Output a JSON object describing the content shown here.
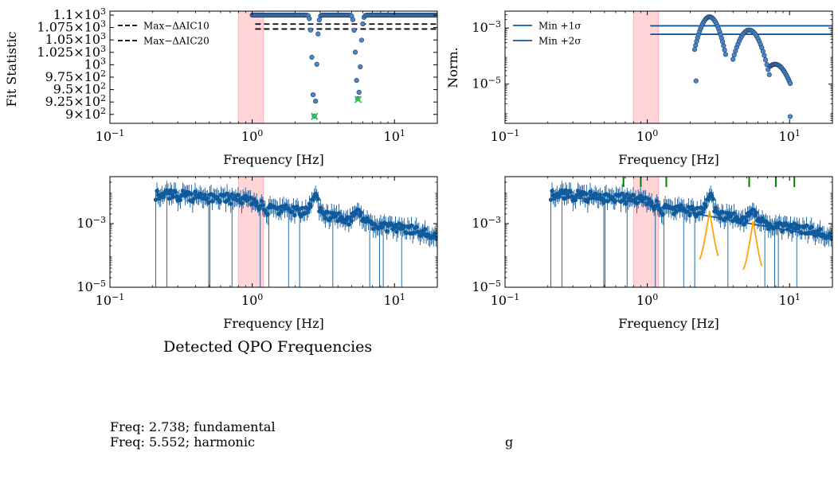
{
  "chart_data": [
    {
      "type": "scatter",
      "panel": "top-left",
      "xlabel": "Frequency [Hz]",
      "ylabel": "Fit Statistic",
      "xscale": "log",
      "xlim": [
        0.1,
        20
      ],
      "ylim": [
        882,
        1108
      ],
      "x_ticks": [
        {
          "value": 0.1,
          "base": "10",
          "exp": "−1"
        },
        {
          "value": 1,
          "base": "10",
          "exp": "0"
        },
        {
          "value": 10,
          "base": "10",
          "exp": "1"
        }
      ],
      "y_ticks": [
        {
          "value": 900,
          "mant": "9",
          "times": "×",
          "base": "10",
          "exp": "2"
        },
        {
          "value": 925,
          "mant": "9.25",
          "times": "×",
          "base": "10",
          "exp": "2"
        },
        {
          "value": 950,
          "mant": "9.5",
          "times": "×",
          "base": "10",
          "exp": "2"
        },
        {
          "value": 975,
          "mant": "9.75",
          "times": "×",
          "base": "10",
          "exp": "2"
        },
        {
          "value": 1000,
          "mant": "",
          "times": "",
          "base": "10",
          "exp": "3"
        },
        {
          "value": 1025,
          "mant": "1.025",
          "times": "×",
          "base": "10",
          "exp": "3"
        },
        {
          "value": 1050,
          "mant": "1.05",
          "times": "×",
          "base": "10",
          "exp": "3"
        },
        {
          "value": 1075,
          "mant": "1.075",
          "times": "×",
          "base": "10",
          "exp": "3"
        },
        {
          "value": 1100,
          "mant": "1.1",
          "times": "×",
          "base": "10",
          "exp": "3"
        }
      ],
      "shaded_band": {
        "x0": 0.8,
        "x1": 1.2,
        "color": "#ffb3b8"
      },
      "lines": [
        {
          "name": "Max−ΔAIC10",
          "y": 1082,
          "x0": 1.05,
          "x1": 20,
          "style": "dashed",
          "color": "#000000"
        },
        {
          "name": "Max−ΔAIC20",
          "y": 1072,
          "x0": 1.05,
          "x1": 20,
          "style": "dashed",
          "color": "#000000"
        }
      ],
      "legend": "upper left",
      "series_color": "#4a86c8",
      "marked_minima": [
        {
          "x": 2.738,
          "y": 896
        },
        {
          "x": 5.552,
          "y": 930
        }
      ],
      "marker_color": "#2ecc40"
    },
    {
      "type": "scatter",
      "panel": "top-right",
      "xlabel": "Frequency [Hz]",
      "ylabel": "Norm.",
      "xscale": "log",
      "yscale": "log",
      "xlim": [
        0.1,
        20
      ],
      "ylim": [
        4e-07,
        0.004
      ],
      "x_ticks": [
        {
          "value": 0.1,
          "base": "10",
          "exp": "−1"
        },
        {
          "value": 1,
          "base": "10",
          "exp": "0"
        },
        {
          "value": 10,
          "base": "10",
          "exp": "1"
        }
      ],
      "y_ticks": [
        {
          "value": 1e-05,
          "base": "10",
          "exp": "−5"
        },
        {
          "value": 0.001,
          "base": "10",
          "exp": "−3"
        }
      ],
      "shaded_band": {
        "x0": 0.8,
        "x1": 1.2,
        "color": "#ffb3b8"
      },
      "lines": [
        {
          "name": "Min +1σ",
          "y": 0.0012,
          "x0": 1.05,
          "x1": 20,
          "style": "solid",
          "color": "#0e5a9c"
        },
        {
          "name": "Min +2σ",
          "y": 0.0006,
          "x0": 1.05,
          "x1": 20,
          "style": "solid",
          "color": "#0e5a9c"
        }
      ],
      "legend": "upper left",
      "series_color": "#4a86c8"
    },
    {
      "type": "scatter",
      "panel": "bottom-left",
      "xlabel": "Frequency [Hz]",
      "xscale": "log",
      "yscale": "log",
      "xlim": [
        0.1,
        20
      ],
      "ylim": [
        1e-05,
        0.03
      ],
      "x_ticks": [
        {
          "value": 0.1,
          "base": "10",
          "exp": "−1"
        },
        {
          "value": 1,
          "base": "10",
          "exp": "0"
        },
        {
          "value": 10,
          "base": "10",
          "exp": "1"
        }
      ],
      "y_ticks": [
        {
          "value": 1e-05,
          "base": "10",
          "exp": "−5"
        },
        {
          "value": 0.001,
          "base": "10",
          "exp": "−3"
        }
      ],
      "shaded_band": {
        "x0": 0.8,
        "x1": 1.2,
        "color": "#ffb3b8"
      },
      "series_color": "#0e5a9c"
    },
    {
      "type": "scatter",
      "panel": "bottom-right",
      "xlabel": "Frequency [Hz]",
      "xscale": "log",
      "yscale": "log",
      "xlim": [
        0.1,
        20
      ],
      "ylim": [
        1e-05,
        0.03
      ],
      "x_ticks": [
        {
          "value": 0.1,
          "base": "10",
          "exp": "−1"
        },
        {
          "value": 1,
          "base": "10",
          "exp": "0"
        },
        {
          "value": 10,
          "base": "10",
          "exp": "1"
        }
      ],
      "y_ticks": [
        {
          "value": 1e-05,
          "base": "10",
          "exp": "−5"
        },
        {
          "value": 0.001,
          "base": "10",
          "exp": "−3"
        }
      ],
      "shaded_band": {
        "x0": 0.8,
        "x1": 1.2,
        "color": "#ffb3b8"
      },
      "series_color": "#0e5a9c",
      "model_color": "#0e5a9c",
      "lorentzian_color": "#ffa500",
      "qpo_components": [
        {
          "f0": 2.738,
          "peak": 0.0025
        },
        {
          "f0": 5.552,
          "peak": 0.0012
        }
      ],
      "vertical_ticks": [
        0.68,
        0.9,
        1.36,
        5.2,
        8.0,
        10.8
      ],
      "vertical_tick_color": "#008000"
    }
  ],
  "qpo_section": {
    "title": "Detected QPO Frequencies",
    "lines": [
      "Freq: 2.738; fundamental",
      "Freq: 5.552; harmonic"
    ],
    "right_note": "g"
  }
}
